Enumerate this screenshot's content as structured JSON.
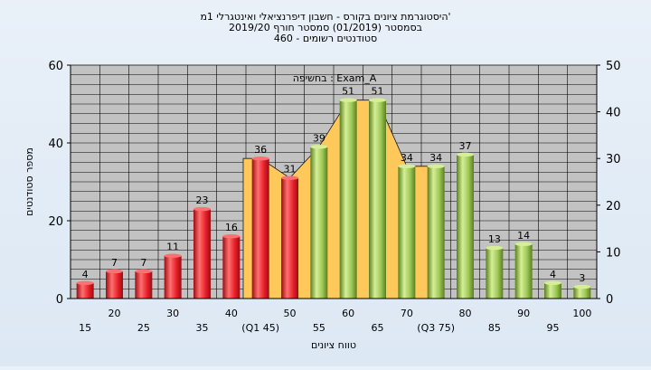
{
  "chart_data": {
    "type": "bar",
    "title_lines": [
      "היסטוגרמת ציונים בקורס - חשבון דיפרנציאלי ואינטגרלי 1מ'",
      "בסמסטר  (01/2019)  סמסטר חורף 2019/20",
      "סטודנטים רשומים - 460"
    ],
    "annotation": "בחשיפה : Exam_A",
    "xlabel": "טווח ציונים",
    "ylabel": "מספר סטודנטים",
    "ylim": [
      0,
      60
    ],
    "y2lim": [
      0,
      50
    ],
    "y_ticks": [
      "0",
      "20",
      "40",
      "60"
    ],
    "y2_ticks": [
      "0",
      "10",
      "20",
      "30",
      "40",
      "50"
    ],
    "categories": [
      "15",
      "20",
      "25",
      "30",
      "35",
      "40",
      "(Q1 45)",
      "50",
      "55",
      "60",
      "65",
      "70",
      "(Q3 75)",
      "80",
      "85",
      "90",
      "95",
      "100"
    ],
    "values": [
      4,
      7,
      7,
      11,
      23,
      16,
      36,
      31,
      39,
      51,
      51,
      34,
      34,
      37,
      13,
      14,
      4,
      3
    ],
    "data_labels": [
      "4",
      "7",
      "7",
      "11",
      "23",
      "16",
      "36",
      "31",
      "39",
      "51",
      "51",
      "34",
      "34",
      "37",
      "13",
      "14",
      "4",
      "3"
    ],
    "bar_colors": [
      "red",
      "red",
      "red",
      "red",
      "red",
      "red",
      "red",
      "red",
      "green",
      "green",
      "green",
      "green",
      "green",
      "green",
      "green",
      "green",
      "green",
      "green"
    ],
    "quartile_band": {
      "from_category": "(Q1 45)",
      "to_category": "(Q3 75)"
    },
    "grid": true,
    "colors": {
      "red_light": "#ff7070",
      "red_mid": "#e8202a",
      "red_dark": "#9a0d14",
      "green_light": "#d6ef96",
      "green_mid": "#9cc757",
      "green_dark": "#5a7f1e",
      "band": "#ffc85a",
      "plot_bg": "#c2c2c2",
      "grid": "#000000"
    }
  }
}
